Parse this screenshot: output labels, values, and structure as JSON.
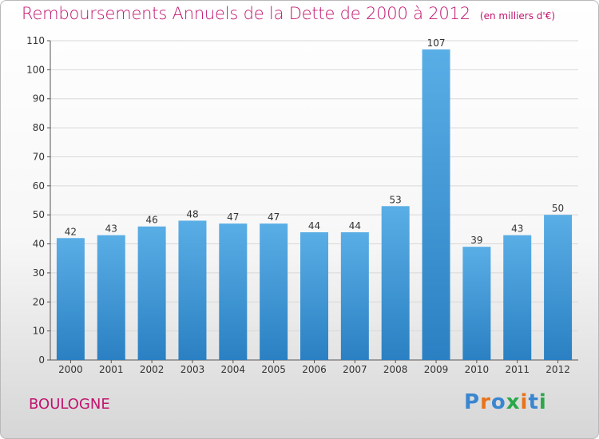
{
  "title": "Remboursements Annuels de la Dette de 2000 à 2012",
  "unit": "(en milliers d'€)",
  "place": "BOULOGNE",
  "brand": "Proxiti",
  "colors": {
    "title": "#c0146e",
    "bar_top": "#5aaee6",
    "bar_bottom": "#2a80c2"
  },
  "chart_data": {
    "type": "bar",
    "categories": [
      "2000",
      "2001",
      "2002",
      "2003",
      "2004",
      "2005",
      "2006",
      "2007",
      "2008",
      "2009",
      "2010",
      "2011",
      "2012"
    ],
    "values": [
      42,
      43,
      46,
      48,
      47,
      47,
      44,
      44,
      53,
      107,
      39,
      43,
      50
    ],
    "ylim": [
      0,
      110
    ],
    "yticks": [
      0,
      10,
      20,
      30,
      40,
      50,
      60,
      70,
      80,
      90,
      100,
      110
    ],
    "grid": true,
    "data_labels": true
  }
}
